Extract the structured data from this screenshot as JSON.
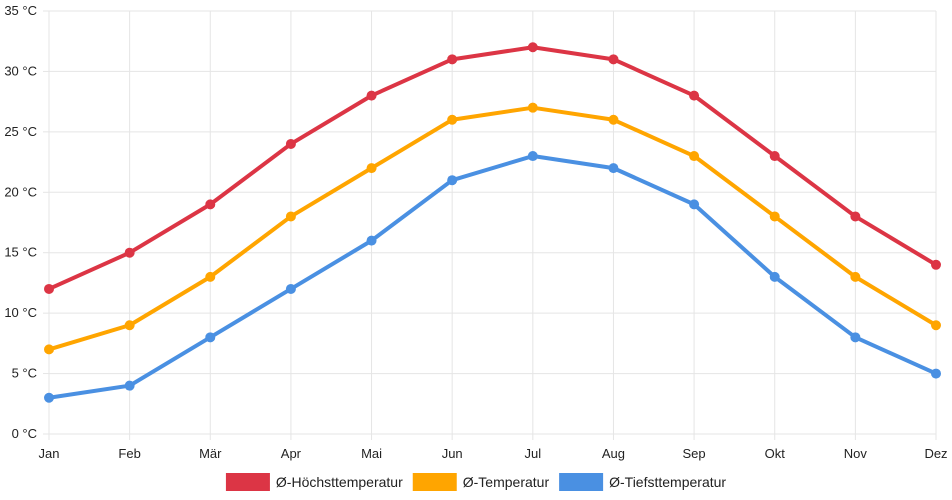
{
  "chart_data": {
    "type": "line",
    "title": "",
    "xlabel": "",
    "ylabel": "",
    "ylim": [
      0,
      35
    ],
    "y_step": 5,
    "y_unit": " °C",
    "grid": true,
    "legend_position": "bottom",
    "categories": [
      "Jan",
      "Feb",
      "Mär",
      "Apr",
      "Mai",
      "Jun",
      "Jul",
      "Aug",
      "Sep",
      "Okt",
      "Nov",
      "Dez"
    ],
    "series": [
      {
        "name": "Ø-Höchsttemperatur",
        "color": "#dc3545",
        "values": [
          12,
          15,
          19,
          24,
          28,
          31,
          32,
          31,
          28,
          23,
          18,
          14
        ]
      },
      {
        "name": "Ø-Temperatur",
        "color": "#ffa500",
        "values": [
          7,
          9,
          13,
          18,
          22,
          26,
          27,
          26,
          23,
          18,
          13,
          9
        ]
      },
      {
        "name": "Ø-Tiefsttemperatur",
        "color": "#4a90e2",
        "values": [
          3,
          4,
          8,
          12,
          16,
          21,
          23,
          22,
          19,
          13,
          8,
          5
        ]
      }
    ]
  }
}
